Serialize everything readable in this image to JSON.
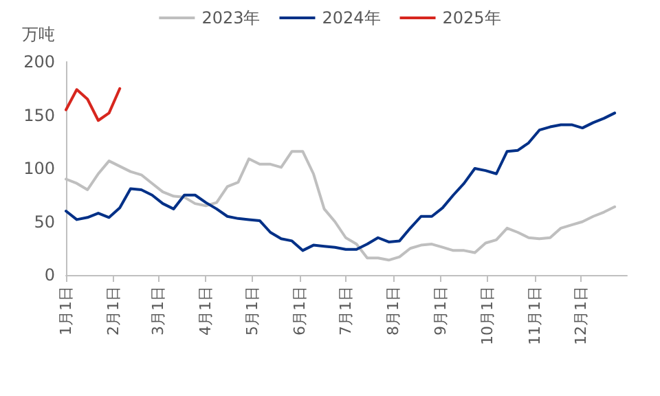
{
  "chart_data": {
    "type": "line",
    "ylabel": "万吨",
    "x": [
      "--01-01",
      "--01-08",
      "--01-15",
      "--01-22",
      "--01-29",
      "--02-05",
      "--02-12",
      "--02-19",
      "--02-26",
      "--03-04",
      "--03-11",
      "--03-18",
      "--03-25",
      "--04-01",
      "--04-08",
      "--04-15",
      "--04-22",
      "--04-29",
      "--05-06",
      "--05-13",
      "--05-20",
      "--05-27",
      "--06-03",
      "--06-10",
      "--06-17",
      "--06-24",
      "--07-01",
      "--07-08",
      "--07-15",
      "--07-22",
      "--07-29",
      "--08-05",
      "--08-12",
      "--08-19",
      "--08-26",
      "--09-02",
      "--09-09",
      "--09-16",
      "--09-23",
      "--09-30",
      "--10-07",
      "--10-14",
      "--10-21",
      "--10-28",
      "--11-04",
      "--11-11",
      "--11-18",
      "--11-25",
      "--12-02",
      "--12-09",
      "--12-16",
      "--12-23"
    ],
    "series": [
      {
        "name": "2023年",
        "color": "#bfbfbf",
        "values": [
          90,
          86,
          80,
          95,
          107,
          102,
          97,
          94,
          86,
          78,
          74,
          73,
          67,
          65,
          68,
          83,
          87,
          109,
          104,
          104,
          101,
          116,
          116,
          95,
          62,
          50,
          35,
          29,
          16,
          16,
          14,
          17,
          25,
          28,
          29,
          26,
          23,
          23,
          21,
          30,
          33,
          44,
          40,
          35,
          34,
          35,
          44,
          47,
          50,
          55,
          59,
          64
        ]
      },
      {
        "name": "2024年",
        "color": "#003087",
        "values": [
          60,
          52,
          54,
          58,
          54,
          63,
          81,
          80,
          75,
          67,
          62,
          75,
          75,
          68,
          62,
          55,
          53,
          52,
          51,
          40,
          34,
          32,
          23,
          28,
          27,
          26,
          24,
          24,
          29,
          35,
          31,
          32,
          44,
          55,
          55,
          63,
          75,
          86,
          100,
          98,
          95,
          116,
          117,
          124,
          136,
          139,
          141,
          141,
          138,
          143,
          147,
          152
        ]
      },
      {
        "name": "2025年",
        "color": "#d7261e",
        "x": [
          "--01-01",
          "--01-08",
          "--01-15",
          "--01-22",
          "--01-29",
          "--02-05"
        ],
        "values": [
          155,
          174,
          165,
          145,
          152,
          175
        ]
      }
    ],
    "xlim": [
      "--01-01",
      "--12-31"
    ],
    "xticks": [
      {
        "value": "--01-01",
        "label": "1月1日"
      },
      {
        "value": "--02-01",
        "label": "2月1日"
      },
      {
        "value": "--03-01",
        "label": "3月1日"
      },
      {
        "value": "--04-01",
        "label": "4月1日"
      },
      {
        "value": "--05-01",
        "label": "5月1日"
      },
      {
        "value": "--06-01",
        "label": "6月1日"
      },
      {
        "value": "--07-01",
        "label": "7月1日"
      },
      {
        "value": "--08-01",
        "label": "8月1日"
      },
      {
        "value": "--09-01",
        "label": "9月1日"
      },
      {
        "value": "--10-01",
        "label": "10月1日"
      },
      {
        "value": "--11-01",
        "label": "11月1日"
      },
      {
        "value": "--12-01",
        "label": "12月1日"
      }
    ],
    "ylim": [
      0,
      200
    ],
    "yticks": [
      0,
      50,
      100,
      150,
      200
    ],
    "legend": "top",
    "grid": false,
    "marker": "none",
    "line_style": "solid"
  }
}
